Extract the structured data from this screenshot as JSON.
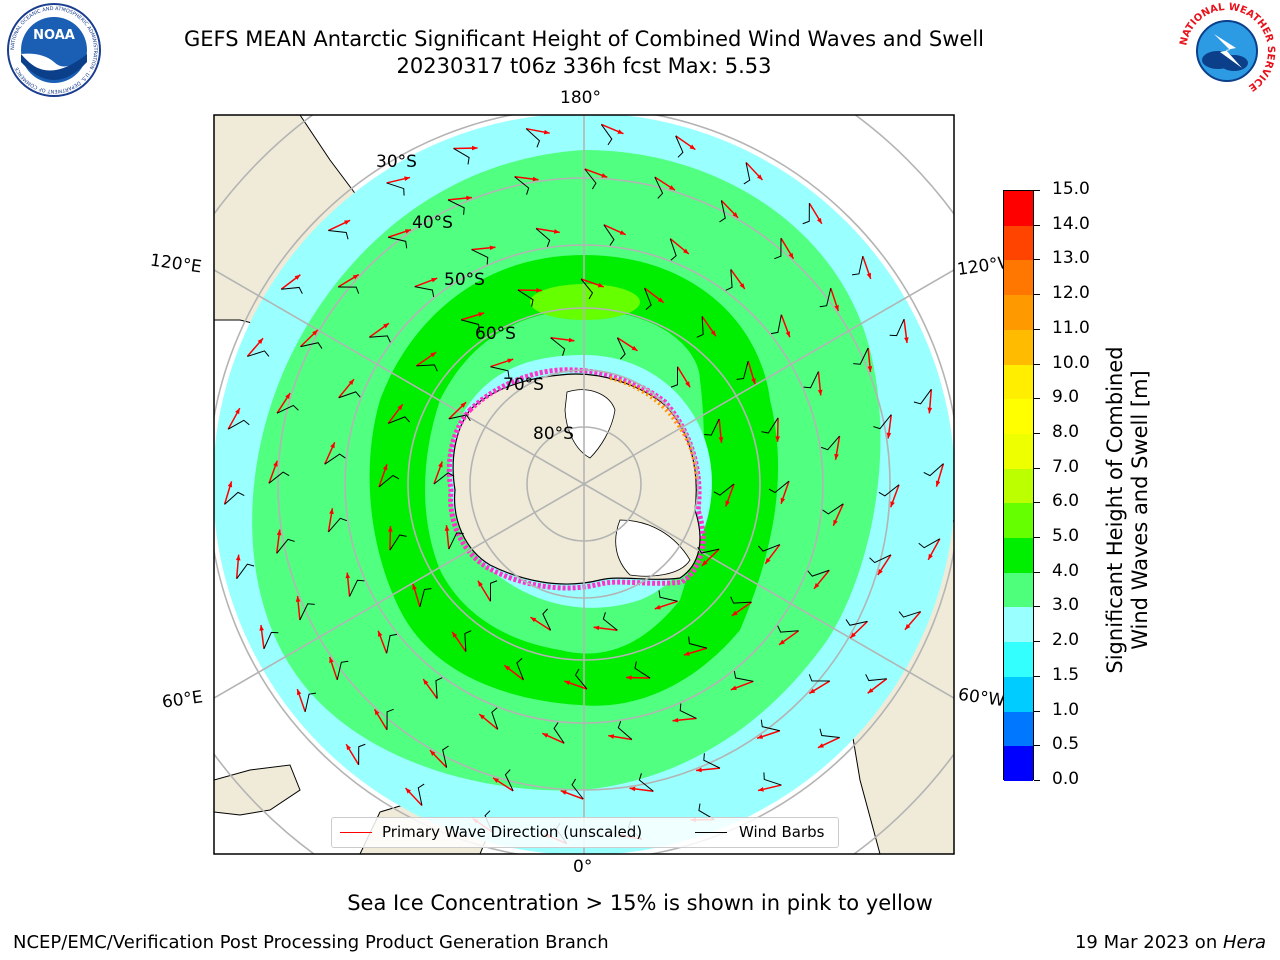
{
  "header": {
    "title_line1": "GEFS MEAN Antarctic Significant Height of Combined Wind Waves and Swell",
    "title_line2": "20230317 t06z 336h fcst   Max: 5.53"
  },
  "logos": {
    "left": {
      "label": "NOAA",
      "ring_text": "NATIONAL OCEANIC AND ATMOSPHERIC ADMINISTRATION · U.S. DEPARTMENT OF COMMERCE",
      "icon": "noaa-logo-icon"
    },
    "right": {
      "ring_text": "NATIONAL WEATHER SERVICE",
      "icon": "nws-logo-icon"
    }
  },
  "map": {
    "projection": "south-polar-stereographic",
    "longitude_labels": [
      "180°",
      "120°E",
      "120°W",
      "60°E",
      "60°W",
      "0°"
    ],
    "latitude_labels": [
      "30°S",
      "40°S",
      "50°S",
      "60°S",
      "70°S",
      "80°S"
    ],
    "colors": {
      "land": "#efebd8",
      "coast": "#000000",
      "grid": "#b4b4b4",
      "wave_arrow": "#ff0000",
      "barb": "#000000"
    }
  },
  "colorbar": {
    "label_line1": "Significant Height of Combined",
    "label_line2": "Wind Waves and Swell [m]",
    "ticks": [
      "0.0",
      "0.5",
      "1.0",
      "1.5",
      "2.0",
      "3.0",
      "4.0",
      "5.0",
      "6.0",
      "7.0",
      "8.0",
      "9.0",
      "10.0",
      "11.0",
      "12.0",
      "13.0",
      "14.0",
      "15.0"
    ],
    "colors": [
      "#0000ff",
      "#0077ff",
      "#00ccff",
      "#33ffff",
      "#99ffff",
      "#4dff7a",
      "#00ee00",
      "#66ff00",
      "#bbff00",
      "#eeff00",
      "#ffff00",
      "#ffee00",
      "#ffbb00",
      "#ff9900",
      "#ff7700",
      "#ff4400",
      "#ff0000"
    ]
  },
  "legend": {
    "wave_label": "Primary Wave Direction (unscaled)",
    "barb_label": "Wind Barbs"
  },
  "footer": {
    "sea_ice_note": "Sea Ice Concentration > 15% is shown in pink to yellow",
    "credit": "NCEP/EMC/Verification Post Processing Product Generation Branch",
    "date": "19 Mar 2023 on ",
    "machine": "Hera"
  }
}
